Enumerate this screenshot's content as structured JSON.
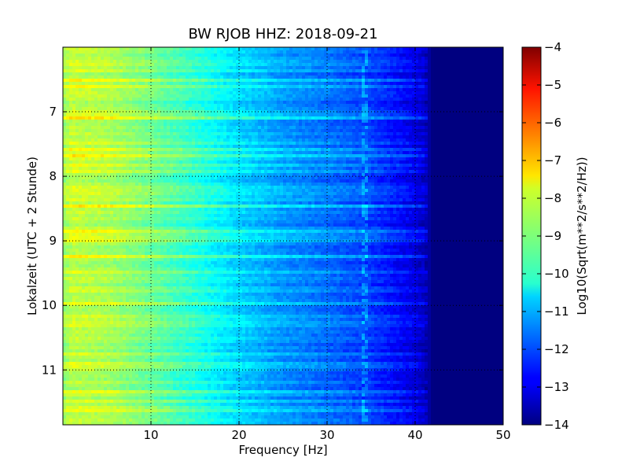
{
  "chart_data": {
    "type": "heatmap",
    "title": "BW RJOB HHZ: 2018-09-21",
    "xlabel": "Frequency [Hz]",
    "ylabel": "Lokalzeit (UTC + 2 Stunde)",
    "xlim": [
      0,
      50
    ],
    "ylim": [
      6.0,
      11.85
    ],
    "y_inverted": true,
    "x_ticks": [
      10,
      20,
      30,
      40,
      50
    ],
    "x_tick_labels": [
      "10",
      "20",
      "30",
      "40",
      "50"
    ],
    "y_ticks": [
      7,
      8,
      9,
      10,
      11
    ],
    "y_tick_labels": [
      "7",
      "8",
      "9",
      "10",
      "11"
    ],
    "grid": true,
    "colormap": "jet",
    "colorbar": {
      "label": "Log10(Sqrt(m**2/s**2/Hz))",
      "range": [
        -14,
        -4
      ],
      "ticks": [
        -4,
        -5,
        -6,
        -7,
        -8,
        -9,
        -10,
        -11,
        -12,
        -13,
        -14
      ],
      "tick_labels": [
        "−4",
        "−5",
        "−6",
        "−7",
        "−8",
        "−9",
        "−10",
        "−11",
        "−12",
        "−13",
        "−14"
      ]
    },
    "spectrum_profile": {
      "frequency_hz": [
        0,
        1,
        5,
        10,
        15,
        20,
        25,
        30,
        35,
        38,
        41,
        42,
        50
      ],
      "log10_amplitude": [
        -8.7,
        -8.3,
        -8.5,
        -9.1,
        -9.8,
        -10.6,
        -11.2,
        -11.6,
        -12.1,
        -12.6,
        -13.2,
        -14.0,
        -14.0
      ]
    },
    "features": {
      "band_at_hz": 34.3,
      "cutoff_hz": 41.5
    }
  }
}
